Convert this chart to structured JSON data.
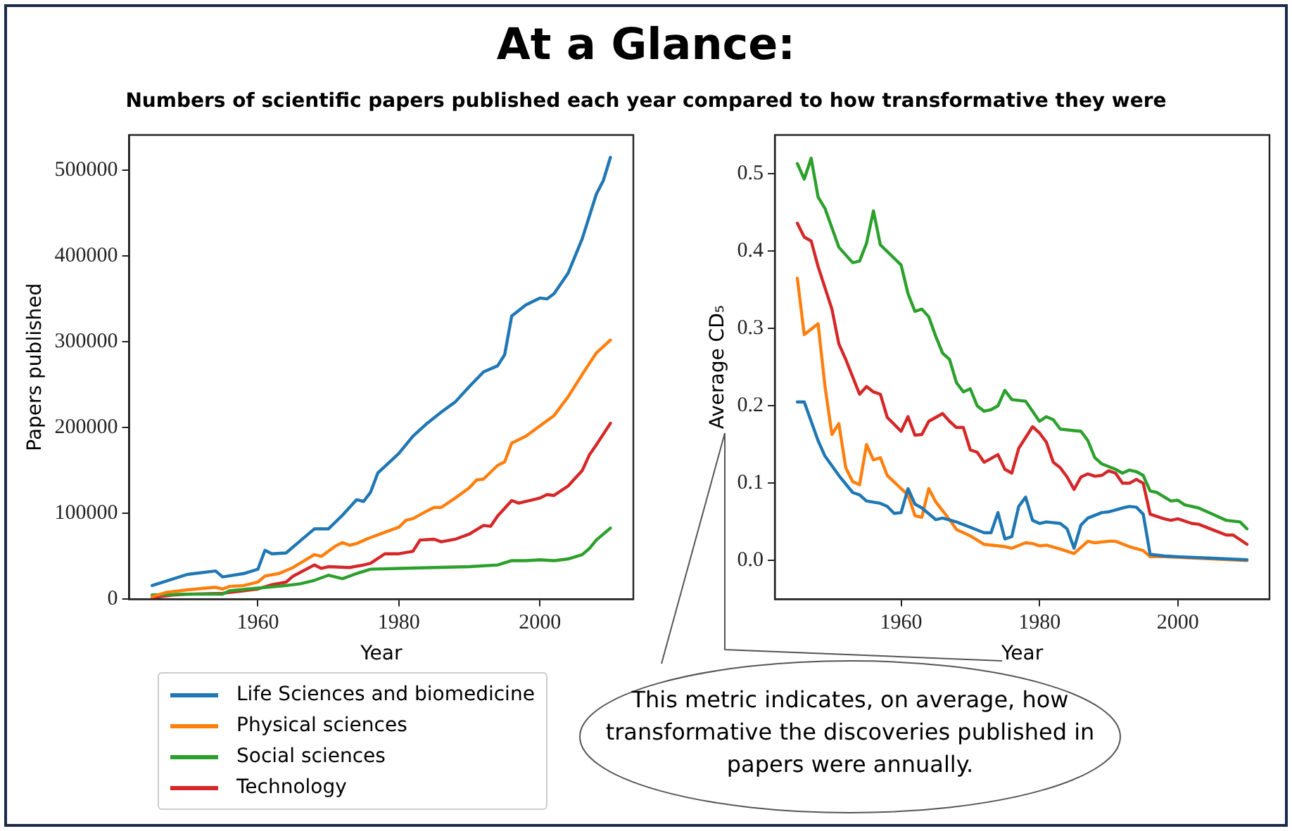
{
  "chart_data": [
    {
      "type": "line",
      "title": "At a Glance:",
      "subtitle": "Numbers of scientific papers published each year compared to how transformative they were",
      "xlabel": "Year",
      "ylabel": "Papers published",
      "xlim": [
        1941.75,
        2013.25
      ],
      "ylim": [
        0,
        541000
      ],
      "xticks": [
        1960,
        1980,
        2000
      ],
      "yticks": [
        0,
        100000,
        200000,
        300000,
        400000,
        500000
      ],
      "legend": "bottom",
      "series": [
        {
          "name": "Life Sciences and biomedicine",
          "color": "#1f77b4",
          "x": [
            1945,
            1950,
            1954,
            1955,
            1958,
            1960,
            1961,
            1962,
            1964,
            1966,
            1968,
            1970,
            1972,
            1974,
            1975,
            1976,
            1977,
            1980,
            1982,
            1984,
            1986,
            1988,
            1990,
            1992,
            1994,
            1995,
            1996,
            1998,
            2000,
            2001,
            2002,
            2004,
            2006,
            2008,
            2009,
            2010
          ],
          "values": [
            16000,
            29000,
            33000,
            26000,
            30000,
            35000,
            57000,
            53000,
            54000,
            68000,
            82000,
            82000,
            98000,
            116000,
            114000,
            125000,
            147000,
            170000,
            190000,
            205000,
            218000,
            230000,
            248000,
            265000,
            272000,
            285000,
            330000,
            343000,
            351000,
            350000,
            356000,
            380000,
            420000,
            472000,
            488000,
            515000
          ]
        },
        {
          "name": "Physical sciences",
          "color": "#ff7f0e",
          "x": [
            1945,
            1947,
            1950,
            1954,
            1955,
            1956,
            1958,
            1960,
            1961,
            1963,
            1965,
            1968,
            1969,
            1971,
            1972,
            1973,
            1974,
            1976,
            1978,
            1980,
            1981,
            1982,
            1984,
            1985,
            1986,
            1988,
            1990,
            1991,
            1992,
            1994,
            1995,
            1996,
            1998,
            2000,
            2002,
            2004,
            2006,
            2008,
            2010
          ],
          "values": [
            3000,
            8000,
            11000,
            14000,
            12000,
            15000,
            16000,
            20000,
            27000,
            30000,
            37000,
            52000,
            50000,
            62000,
            66000,
            63000,
            65000,
            72000,
            78000,
            84000,
            92000,
            94000,
            103000,
            107000,
            107000,
            118000,
            130000,
            139000,
            140000,
            156000,
            160000,
            182000,
            190000,
            202000,
            214000,
            236000,
            262000,
            287000,
            302000
          ]
        },
        {
          "name": "Social sciences",
          "color": "#2ca02c",
          "x": [
            1945,
            1950,
            1955,
            1956,
            1960,
            1964,
            1966,
            1968,
            1970,
            1972,
            1974,
            1976,
            1980,
            1985,
            1990,
            1994,
            1996,
            1998,
            2000,
            2002,
            2004,
            2006,
            2007,
            2008,
            2010
          ],
          "values": [
            5000,
            6000,
            6000,
            10000,
            13000,
            16000,
            18000,
            22000,
            28000,
            24000,
            30000,
            35000,
            36000,
            37000,
            38000,
            40000,
            45000,
            45000,
            46000,
            45000,
            47000,
            52000,
            59000,
            69000,
            83000
          ]
        },
        {
          "name": "Technology",
          "color": "#d62728",
          "x": [
            1945,
            1948,
            1950,
            1955,
            1958,
            1960,
            1962,
            1964,
            1965,
            1968,
            1969,
            1970,
            1973,
            1975,
            1976,
            1978,
            1980,
            1982,
            1983,
            1985,
            1986,
            1988,
            1990,
            1992,
            1993,
            1994,
            1996,
            1997,
            2000,
            2001,
            2002,
            2004,
            2006,
            2007,
            2008,
            2010
          ],
          "values": [
            2000,
            5000,
            6000,
            7000,
            10000,
            12000,
            17000,
            20000,
            27000,
            40000,
            36000,
            38000,
            37000,
            40000,
            42000,
            53000,
            53000,
            56000,
            69000,
            70000,
            67000,
            70000,
            76000,
            86000,
            85000,
            97000,
            115000,
            112000,
            118000,
            122000,
            121000,
            132000,
            150000,
            168000,
            180000,
            205000
          ]
        }
      ]
    },
    {
      "type": "line",
      "xlabel": "Year",
      "ylabel": "Average CD₅",
      "xlim": [
        1941.75,
        2013.25
      ],
      "ylim": [
        -0.05,
        0.55
      ],
      "xticks": [
        1960,
        1980,
        2000
      ],
      "yticks": [
        {
          "value": 0,
          "label": "0.0"
        },
        0.1,
        0.2,
        0.3,
        0.4,
        0.5
      ],
      "annotations": [
        "This metric indicates, on average, how transformative the discoveries published in papers were annually."
      ],
      "series": [
        {
          "color": "#1f77b4",
          "x": [
            1945,
            1946,
            1947,
            1948,
            1949,
            1951,
            1953,
            1954,
            1955,
            1957,
            1958,
            1959,
            1960,
            1961,
            1962,
            1963,
            1965,
            1966,
            1968,
            1970,
            1972,
            1973,
            1974,
            1975,
            1976,
            1977,
            1978,
            1979,
            1980,
            1981,
            1983,
            1984,
            1985,
            1986,
            1987,
            1989,
            1990,
            1992,
            1993,
            1994,
            1995,
            1996,
            1998,
            2000,
            2005,
            2010
          ],
          "values": [
            0.205,
            0.205,
            0.18,
            0.155,
            0.135,
            0.11,
            0.088,
            0.085,
            0.077,
            0.074,
            0.07,
            0.061,
            0.062,
            0.093,
            0.073,
            0.068,
            0.053,
            0.055,
            0.05,
            0.043,
            0.036,
            0.036,
            0.062,
            0.028,
            0.031,
            0.07,
            0.082,
            0.052,
            0.048,
            0.05,
            0.048,
            0.041,
            0.016,
            0.046,
            0.055,
            0.062,
            0.063,
            0.068,
            0.07,
            0.069,
            0.06,
            0.008,
            0.006,
            0.005,
            0.003,
            0.001
          ]
        },
        {
          "color": "#ff7f0e",
          "x": [
            1945,
            1946,
            1948,
            1949,
            1950,
            1951,
            1952,
            1953,
            1954,
            1955,
            1956,
            1957,
            1958,
            1960,
            1961,
            1962,
            1963,
            1964,
            1965,
            1967,
            1968,
            1970,
            1972,
            1975,
            1976,
            1978,
            1979,
            1980,
            1981,
            1983,
            1985,
            1987,
            1988,
            1990,
            1991,
            1993,
            1995,
            1996,
            1998,
            2000,
            2005,
            2010
          ],
          "values": [
            0.365,
            0.292,
            0.306,
            0.225,
            0.163,
            0.177,
            0.12,
            0.102,
            0.098,
            0.15,
            0.13,
            0.133,
            0.11,
            0.093,
            0.085,
            0.058,
            0.056,
            0.093,
            0.076,
            0.053,
            0.04,
            0.032,
            0.021,
            0.018,
            0.016,
            0.023,
            0.022,
            0.019,
            0.02,
            0.015,
            0.009,
            0.025,
            0.023,
            0.025,
            0.025,
            0.018,
            0.013,
            0.005,
            0.005,
            null,
            null,
            0.0
          ]
        },
        {
          "color": "#2ca02c",
          "x": [
            1945,
            1946,
            1947,
            1948,
            1949,
            1951,
            1953,
            1954,
            1955,
            1956,
            1957,
            1960,
            1961,
            1962,
            1963,
            1964,
            1965,
            1966,
            1967,
            1968,
            1969,
            1970,
            1971,
            1972,
            1973,
            1974,
            1975,
            1976,
            1978,
            1980,
            1981,
            1982,
            1983,
            1986,
            1987,
            1988,
            1989,
            1991,
            1992,
            1993,
            1994,
            1995,
            1996,
            1997,
            1999,
            2000,
            2001,
            2003,
            2005,
            2007,
            2009,
            2010
          ],
          "values": [
            0.513,
            0.493,
            0.52,
            0.47,
            0.455,
            0.405,
            0.385,
            0.387,
            0.41,
            0.452,
            0.408,
            0.382,
            0.345,
            0.322,
            0.325,
            0.315,
            0.29,
            0.268,
            0.26,
            0.23,
            0.218,
            0.222,
            0.2,
            0.193,
            0.195,
            0.2,
            0.22,
            0.208,
            0.206,
            0.18,
            0.186,
            0.182,
            0.17,
            0.167,
            0.155,
            0.133,
            0.125,
            0.118,
            0.113,
            0.117,
            0.115,
            0.11,
            0.09,
            0.088,
            0.077,
            0.078,
            0.072,
            0.068,
            0.06,
            0.052,
            0.05,
            0.041
          ]
        },
        {
          "color": "#d62728",
          "x": [
            1945,
            1946,
            1947,
            1948,
            1950,
            1951,
            1952,
            1954,
            1955,
            1956,
            1957,
            1958,
            1960,
            1961,
            1962,
            1963,
            1964,
            1966,
            1967,
            1968,
            1969,
            1970,
            1971,
            1972,
            1974,
            1975,
            1976,
            1977,
            1979,
            1980,
            1981,
            1982,
            1983,
            1984,
            1985,
            1986,
            1987,
            1988,
            1989,
            1990,
            1991,
            1992,
            1993,
            1994,
            1995,
            1996,
            1998,
            1999,
            2000,
            2002,
            2003,
            2005,
            2007,
            2008,
            2010
          ],
          "values": [
            0.436,
            0.418,
            0.413,
            0.38,
            0.325,
            0.28,
            0.26,
            0.215,
            0.225,
            0.218,
            0.215,
            0.185,
            0.167,
            0.186,
            0.162,
            0.163,
            0.18,
            0.19,
            0.18,
            0.172,
            0.172,
            0.143,
            0.14,
            0.127,
            0.137,
            0.118,
            0.113,
            0.145,
            0.173,
            0.165,
            0.153,
            0.127,
            0.12,
            0.108,
            0.092,
            0.108,
            0.112,
            0.109,
            0.11,
            0.116,
            0.113,
            0.1,
            0.1,
            0.105,
            0.1,
            0.06,
            0.054,
            0.052,
            0.054,
            0.048,
            0.047,
            0.04,
            0.033,
            0.033,
            0.021
          ]
        }
      ]
    }
  ]
}
